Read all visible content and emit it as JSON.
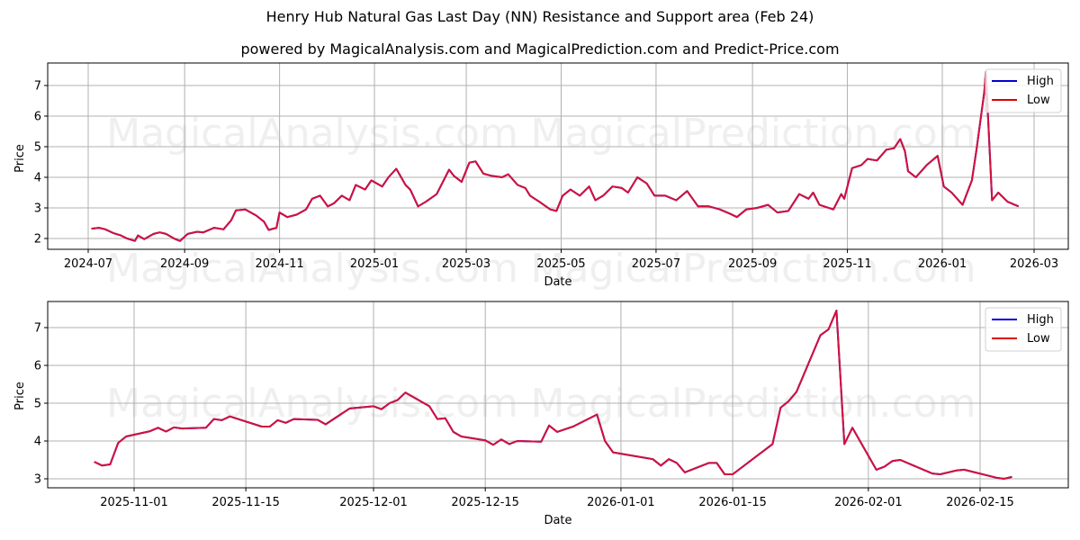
{
  "header": {
    "title": "Henry Hub Natural Gas Last Day  (NN) Resistance and Support area (Feb 24)",
    "subtitle": "powered by MagicalAnalysis.com and MagicalPrediction.com and Predict-Price.com"
  },
  "watermarks": [
    "MagicalAnalysis.com",
    "MagicalPrediction.com"
  ],
  "colors": {
    "high": "#0000cc",
    "low": "#dd0000",
    "line_overlay": "#d4103a",
    "grid": "#b0b0b0",
    "frame": "#000000"
  },
  "legend": {
    "items": [
      {
        "label": "High",
        "color": "#0000cc"
      },
      {
        "label": "Low",
        "color": "#dd0000"
      }
    ]
  },
  "chart_data": [
    {
      "type": "line",
      "title": "Henry Hub Natural Gas Last Day  (NN) Resistance and Support area (Feb 24)",
      "subtitle": "powered by MagicalAnalysis.com and MagicalPrediction.com and Predict-Price.com",
      "xlabel": "Date",
      "ylabel": "Price",
      "ylim": [
        1.6,
        7.75
      ],
      "yticks": [
        2,
        3,
        4,
        5,
        6,
        7
      ],
      "xticks": [
        "2024-07",
        "2024-09",
        "2024-11",
        "2025-01",
        "2025-03",
        "2025-05",
        "2025-07",
        "2025-09",
        "2025-11",
        "2026-01",
        "2026-03"
      ],
      "grid": true,
      "legend_position": "upper right",
      "series": [
        {
          "name": "High",
          "color": "#0000cc"
        },
        {
          "name": "Low",
          "color": "#dd0000"
        }
      ],
      "x": [
        "2024-07-03",
        "2024-07-08",
        "2024-07-12",
        "2024-07-17",
        "2024-07-22",
        "2024-07-26",
        "2024-07-31",
        "2024-08-02",
        "2024-08-06",
        "2024-08-12",
        "2024-08-16",
        "2024-08-20",
        "2024-08-26",
        "2024-08-29",
        "2024-09-03",
        "2024-09-09",
        "2024-09-13",
        "2024-09-20",
        "2024-09-26",
        "2024-10-01",
        "2024-10-04",
        "2024-10-10",
        "2024-10-17",
        "2024-10-22",
        "2024-10-25",
        "2024-10-30",
        "2024-11-01",
        "2024-11-06",
        "2024-11-12",
        "2024-11-18",
        "2024-11-22",
        "2024-11-27",
        "2024-12-02",
        "2024-12-06",
        "2024-12-11",
        "2024-12-16",
        "2024-12-20",
        "2024-12-26",
        "2024-12-30",
        "2025-01-06",
        "2025-01-10",
        "2025-01-15",
        "2025-01-21",
        "2025-01-24",
        "2025-01-29",
        "2025-02-03",
        "2025-02-10",
        "2025-02-18",
        "2025-02-21",
        "2025-02-26",
        "2025-03-03",
        "2025-03-07",
        "2025-03-12",
        "2025-03-17",
        "2025-03-24",
        "2025-03-28",
        "2025-04-03",
        "2025-04-08",
        "2025-04-11",
        "2025-04-17",
        "2025-04-24",
        "2025-04-28",
        "2025-05-02",
        "2025-05-07",
        "2025-05-13",
        "2025-05-19",
        "2025-05-23",
        "2025-05-28",
        "2025-06-03",
        "2025-06-09",
        "2025-06-13",
        "2025-06-19",
        "2025-06-25",
        "2025-06-30",
        "2025-07-07",
        "2025-07-14",
        "2025-07-21",
        "2025-07-28",
        "2025-08-04",
        "2025-08-11",
        "2025-08-18",
        "2025-08-22",
        "2025-08-28",
        "2025-09-04",
        "2025-09-11",
        "2025-09-17",
        "2025-09-24",
        "2025-10-01",
        "2025-10-07",
        "2025-10-10",
        "2025-10-14",
        "2025-10-17",
        "2025-10-23",
        "2025-10-28",
        "2025-10-30",
        "2025-11-04",
        "2025-11-10",
        "2025-11-14",
        "2025-11-20",
        "2025-11-26",
        "2025-12-01",
        "2025-12-05",
        "2025-12-08",
        "2025-12-10",
        "2025-12-15",
        "2025-12-22",
        "2025-12-29",
        "2026-01-02",
        "2026-01-07",
        "2026-01-14",
        "2026-01-20",
        "2026-01-23",
        "2026-01-28",
        "2026-01-29",
        "2026-02-02",
        "2026-02-06",
        "2026-02-12",
        "2026-02-19"
      ],
      "values": [
        2.32,
        2.35,
        2.3,
        2.18,
        2.1,
        2.0,
        1.92,
        2.1,
        1.98,
        2.15,
        2.2,
        2.15,
        1.98,
        1.92,
        2.15,
        2.22,
        2.2,
        2.35,
        2.3,
        2.6,
        2.92,
        2.95,
        2.75,
        2.55,
        2.28,
        2.35,
        2.85,
        2.7,
        2.78,
        2.95,
        3.3,
        3.4,
        3.05,
        3.15,
        3.4,
        3.25,
        3.75,
        3.6,
        3.9,
        3.7,
        4.0,
        4.28,
        3.75,
        3.6,
        3.05,
        3.2,
        3.45,
        4.25,
        4.05,
        3.85,
        4.48,
        4.52,
        4.12,
        4.05,
        4.0,
        4.1,
        3.75,
        3.65,
        3.4,
        3.2,
        2.95,
        2.9,
        3.4,
        3.6,
        3.4,
        3.7,
        3.25,
        3.4,
        3.7,
        3.65,
        3.5,
        4.0,
        3.8,
        3.4,
        3.4,
        3.25,
        3.55,
        3.05,
        3.05,
        2.95,
        2.8,
        2.7,
        2.95,
        3.0,
        3.1,
        2.85,
        2.9,
        3.45,
        3.3,
        3.5,
        3.1,
        3.05,
        2.95,
        3.45,
        3.3,
        4.3,
        4.4,
        4.6,
        4.55,
        4.9,
        4.95,
        5.25,
        4.85,
        4.2,
        4.0,
        4.4,
        4.7,
        3.7,
        3.5,
        3.1,
        3.9,
        4.9,
        6.8,
        7.45,
        3.25,
        3.5,
        3.2,
        3.05
      ]
    },
    {
      "type": "line",
      "xlabel": "Date",
      "ylabel": "Price",
      "ylim": [
        2.75,
        7.7
      ],
      "yticks": [
        3,
        4,
        5,
        6,
        7
      ],
      "xticks": [
        "2025-11-01",
        "2025-11-15",
        "2025-12-01",
        "2025-12-15",
        "2026-01-01",
        "2026-01-15",
        "2026-02-01",
        "2026-02-15"
      ],
      "grid": true,
      "legend_position": "upper right",
      "series": [
        {
          "name": "High",
          "color": "#0000cc"
        },
        {
          "name": "Low",
          "color": "#dd0000"
        }
      ],
      "x": [
        "2025-10-27",
        "2025-10-28",
        "2025-10-29",
        "2025-10-30",
        "2025-10-31",
        "2025-11-03",
        "2025-11-04",
        "2025-11-05",
        "2025-11-06",
        "2025-11-07",
        "2025-11-10",
        "2025-11-11",
        "2025-11-12",
        "2025-11-13",
        "2025-11-17",
        "2025-11-18",
        "2025-11-19",
        "2025-11-20",
        "2025-11-21",
        "2025-11-24",
        "2025-11-25",
        "2025-11-28",
        "2025-12-01",
        "2025-12-02",
        "2025-12-03",
        "2025-12-04",
        "2025-12-05",
        "2025-12-08",
        "2025-12-09",
        "2025-12-10",
        "2025-12-11",
        "2025-12-12",
        "2025-12-15",
        "2025-12-16",
        "2025-12-17",
        "2025-12-18",
        "2025-12-19",
        "2025-12-22",
        "2025-12-23",
        "2025-12-24",
        "2025-12-26",
        "2025-12-29",
        "2025-12-30",
        "2025-12-31",
        "2026-01-05",
        "2026-01-06",
        "2026-01-07",
        "2026-01-08",
        "2026-01-09",
        "2026-01-12",
        "2026-01-13",
        "2026-01-14",
        "2026-01-15",
        "2026-01-20",
        "2026-01-21",
        "2026-01-22",
        "2026-01-23",
        "2026-01-26",
        "2026-01-27",
        "2026-01-28",
        "2026-01-29",
        "2026-01-30",
        "2026-02-02",
        "2026-02-03",
        "2026-02-04",
        "2026-02-05",
        "2026-02-09",
        "2026-02-10",
        "2026-02-12",
        "2026-02-13",
        "2026-02-17",
        "2026-02-18",
        "2026-02-19"
      ],
      "values": [
        3.45,
        3.35,
        3.38,
        3.95,
        4.12,
        4.26,
        4.35,
        4.25,
        4.36,
        4.33,
        4.35,
        4.58,
        4.55,
        4.65,
        4.38,
        4.38,
        4.55,
        4.48,
        4.58,
        4.56,
        4.44,
        4.86,
        4.92,
        4.84,
        5.0,
        5.08,
        5.28,
        4.92,
        4.58,
        4.6,
        4.24,
        4.12,
        4.02,
        3.9,
        4.04,
        3.92,
        4.0,
        3.98,
        4.41,
        4.24,
        4.38,
        4.7,
        4.0,
        3.7,
        3.52,
        3.35,
        3.52,
        3.42,
        3.17,
        3.42,
        3.42,
        3.12,
        3.12,
        3.92,
        4.88,
        5.05,
        5.3,
        6.8,
        6.95,
        7.45,
        3.92,
        4.35,
        3.24,
        3.32,
        3.47,
        3.5,
        3.14,
        3.12,
        3.22,
        3.24,
        3.03,
        3.0,
        3.05
      ]
    }
  ]
}
